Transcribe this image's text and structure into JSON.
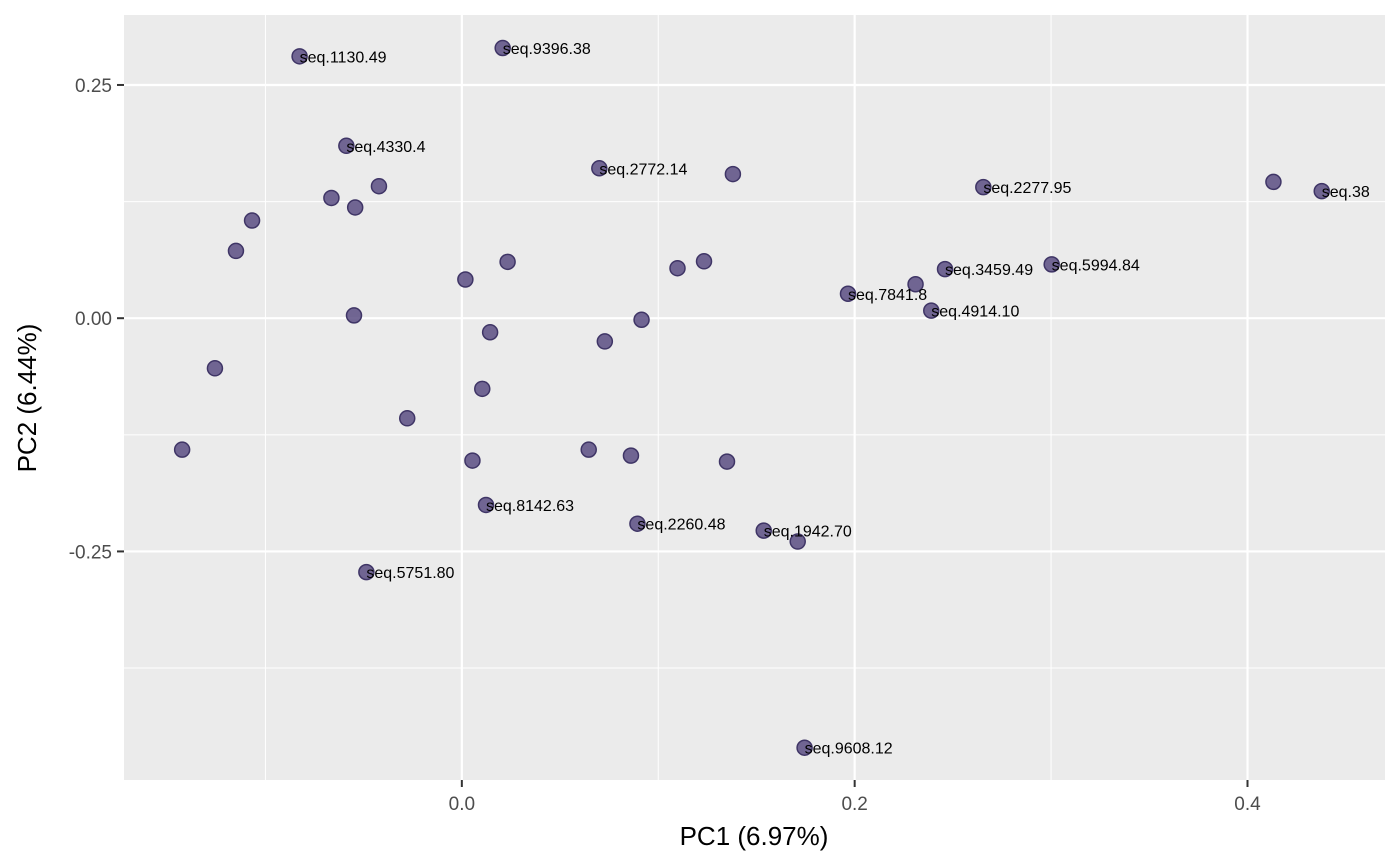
{
  "chart_data": {
    "type": "scatter",
    "title": "",
    "xlabel": "PC1 (6.97%)",
    "ylabel": "PC2 (6.44%)",
    "xlim": [
      -0.172,
      0.47
    ],
    "ylim": [
      -0.495,
      0.325
    ],
    "x_ticks": [
      0.0,
      0.2,
      0.4
    ],
    "x_tick_labels": [
      "0.0",
      "0.2",
      "0.4"
    ],
    "y_ticks": [
      -0.25,
      0.0,
      0.25
    ],
    "y_tick_labels": [
      "-0.25",
      "0.00",
      "0.25"
    ],
    "grid": true,
    "point_color": "#5b4d82",
    "panel_background": "#ebebeb",
    "points": [
      {
        "x": -0.0826,
        "y": 0.2807,
        "label": "seq.1130.49"
      },
      {
        "x": 0.0208,
        "y": 0.2896,
        "label": "seq.9396.38"
      },
      {
        "x": -0.0588,
        "y": 0.1848,
        "label": "seq.4330.4"
      },
      {
        "x": 0.07,
        "y": 0.1607,
        "label": "seq.2772.14"
      },
      {
        "x": 0.138,
        "y": 0.1545,
        "label": ""
      },
      {
        "x": 0.2655,
        "y": 0.1405,
        "label": "seq.2277.95"
      },
      {
        "x": 0.4132,
        "y": 0.1461,
        "label": ""
      },
      {
        "x": 0.4378,
        "y": 0.1362,
        "label": "seq.38"
      },
      {
        "x": -0.0422,
        "y": 0.1415,
        "label": ""
      },
      {
        "x": -0.0664,
        "y": 0.1289,
        "label": ""
      },
      {
        "x": -0.0543,
        "y": 0.1187,
        "label": ""
      },
      {
        "x": -0.1068,
        "y": 0.1047,
        "label": ""
      },
      {
        "x": -0.115,
        "y": 0.0721,
        "label": ""
      },
      {
        "x": 0.0233,
        "y": 0.0604,
        "label": ""
      },
      {
        "x": 0.1233,
        "y": 0.061,
        "label": ""
      },
      {
        "x": 0.1098,
        "y": 0.0536,
        "label": ""
      },
      {
        "x": 0.3003,
        "y": 0.0577,
        "label": "seq.5994.84"
      },
      {
        "x": 0.246,
        "y": 0.0526,
        "label": "seq.3459.49"
      },
      {
        "x": 0.231,
        "y": 0.0364,
        "label": ""
      },
      {
        "x": 0.1966,
        "y": 0.0262,
        "label": "seq.7841.8"
      },
      {
        "x": 0.0018,
        "y": 0.0415,
        "label": ""
      },
      {
        "x": 0.239,
        "y": 0.0081,
        "label": "seq.4914.10"
      },
      {
        "x": -0.0549,
        "y": 0.003,
        "label": ""
      },
      {
        "x": 0.0915,
        "y": -0.0017,
        "label": ""
      },
      {
        "x": 0.0144,
        "y": -0.0151,
        "label": ""
      },
      {
        "x": 0.0728,
        "y": -0.0249,
        "label": ""
      },
      {
        "x": -0.1257,
        "y": -0.0537,
        "label": ""
      },
      {
        "x": 0.0104,
        "y": -0.0757,
        "label": ""
      },
      {
        "x": -0.0278,
        "y": -0.1073,
        "label": ""
      },
      {
        "x": -0.1424,
        "y": -0.1409,
        "label": ""
      },
      {
        "x": 0.0646,
        "y": -0.1409,
        "label": ""
      },
      {
        "x": 0.0861,
        "y": -0.1473,
        "label": ""
      },
      {
        "x": 0.0054,
        "y": -0.1526,
        "label": ""
      },
      {
        "x": 0.135,
        "y": -0.1537,
        "label": ""
      },
      {
        "x": 0.0123,
        "y": -0.2002,
        "label": "seq.8142.63"
      },
      {
        "x": 0.0894,
        "y": -0.2203,
        "label": "seq.2260.48"
      },
      {
        "x": 0.1537,
        "y": -0.2277,
        "label": "seq.1942.70"
      },
      {
        "x": 0.171,
        "y": -0.2394,
        "label": ""
      },
      {
        "x": -0.0486,
        "y": -0.2722,
        "label": "seq.5751.80"
      },
      {
        "x": 0.1745,
        "y": -0.4604,
        "label": "seq.9608.12"
      }
    ]
  }
}
